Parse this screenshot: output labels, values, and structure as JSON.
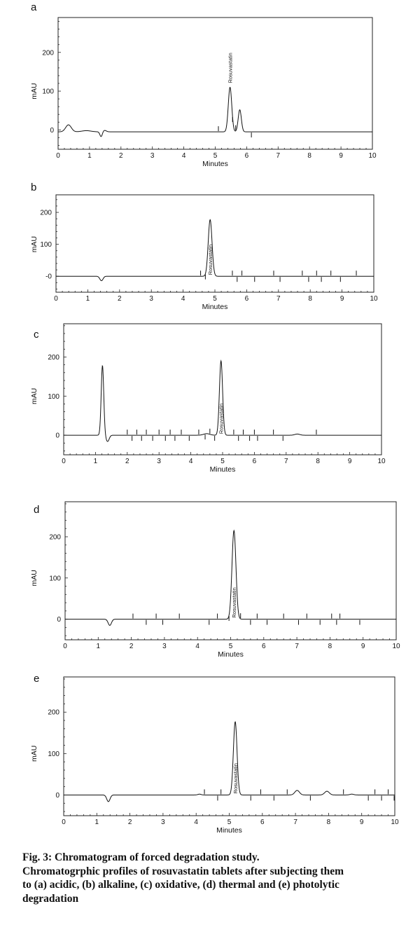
{
  "chart_data": [
    {
      "type": "line",
      "panel_label": "a",
      "xlabel": "Minutes",
      "ylabel": "mAU",
      "xlim": [
        0,
        10
      ],
      "ylim": [
        -50,
        290
      ],
      "x_ticks": [
        "0",
        "1",
        "2",
        "3",
        "4",
        "5",
        "6",
        "7",
        "8",
        "9",
        "10"
      ],
      "y_ticks": [
        {
          "value": 0,
          "label": "0"
        },
        {
          "value": 100,
          "label": "100"
        },
        {
          "value": 200,
          "label": "200"
        }
      ],
      "grid": false,
      "baseline": -5,
      "peaks": [
        {
          "t": 0.33,
          "h": 18,
          "w": 0.09
        },
        {
          "t": 0.9,
          "h": 3,
          "w": 0.15
        },
        {
          "t": 1.37,
          "h": -13,
          "w": 0.04
        },
        {
          "t": 1.47,
          "h": 4,
          "w": 0.06
        },
        {
          "t": 5.47,
          "h": 115,
          "w": 0.055
        },
        {
          "t": 5.78,
          "h": 57,
          "w": 0.05
        }
      ],
      "markers": [
        5.1,
        5.55,
        5.65,
        6.15
      ],
      "annotations": [
        {
          "t": 5.47,
          "text": "Rosuvastatin"
        }
      ]
    },
    {
      "type": "line",
      "panel_label": "b",
      "xlabel": "Minutes",
      "ylabel": "mAU",
      "xlim": [
        0,
        10
      ],
      "ylim": [
        -50,
        255
      ],
      "x_ticks": [
        "0",
        "1",
        "2",
        "3",
        "4",
        "5",
        "6",
        "7",
        "8",
        "9",
        "10"
      ],
      "y_ticks": [
        {
          "value": 0,
          "label": "-0"
        },
        {
          "value": 100,
          "label": "100"
        },
        {
          "value": 200,
          "label": "200"
        }
      ],
      "grid": false,
      "baseline": 0,
      "peaks": [
        {
          "t": 1.43,
          "h": -14,
          "w": 0.05
        },
        {
          "t": 4.85,
          "h": 177,
          "w": 0.06
        }
      ],
      "markers": [
        4.55,
        4.7,
        5.55,
        5.7,
        5.85,
        6.25,
        6.85,
        7.05,
        7.75,
        7.95,
        8.2,
        8.35,
        8.65,
        8.95,
        9.45
      ],
      "annotations": [
        {
          "t": 4.85,
          "text": "Rosuvastatin"
        }
      ]
    },
    {
      "type": "line",
      "panel_label": "c",
      "xlabel": "Minutes",
      "ylabel": "mAU",
      "xlim": [
        0,
        10
      ],
      "ylim": [
        -50,
        285
      ],
      "x_ticks": [
        "0",
        "1",
        "2",
        "3",
        "4",
        "5",
        "6",
        "7",
        "8",
        "9",
        "10"
      ],
      "y_ticks": [
        {
          "value": 0,
          "label": "0"
        },
        {
          "value": 100,
          "label": "100"
        },
        {
          "value": 200,
          "label": "200"
        }
      ],
      "grid": false,
      "baseline": 0,
      "peaks": [
        {
          "t": 1.22,
          "h": 178,
          "w": 0.04
        },
        {
          "t": 1.38,
          "h": -16,
          "w": 0.05
        },
        {
          "t": 4.5,
          "h": 4,
          "w": 0.1
        },
        {
          "t": 4.95,
          "h": 190,
          "w": 0.05
        },
        {
          "t": 7.35,
          "h": 3,
          "w": 0.08
        }
      ],
      "markers": [
        2.0,
        2.15,
        2.3,
        2.45,
        2.6,
        2.8,
        3.0,
        3.2,
        3.35,
        3.5,
        3.7,
        3.95,
        4.25,
        4.45,
        4.6,
        4.75,
        5.35,
        5.5,
        5.65,
        5.85,
        6.0,
        6.1,
        6.6,
        6.9,
        7.95
      ],
      "annotations": [
        {
          "t": 4.95,
          "text": "Rosuvastatin"
        }
      ]
    },
    {
      "type": "line",
      "panel_label": "d",
      "xlabel": "Minutes",
      "ylabel": "mAU",
      "xlim": [
        0,
        10
      ],
      "ylim": [
        -50,
        285
      ],
      "x_ticks": [
        "0",
        "1",
        "2",
        "3",
        "4",
        "5",
        "6",
        "7",
        "8",
        "9",
        "10"
      ],
      "y_ticks": [
        {
          "value": 0,
          "label": "0"
        },
        {
          "value": 100,
          "label": "100"
        },
        {
          "value": 200,
          "label": "200"
        }
      ],
      "grid": false,
      "baseline": 0,
      "peaks": [
        {
          "t": 1.35,
          "h": -15,
          "w": 0.05
        },
        {
          "t": 5.1,
          "h": 215,
          "w": 0.06
        }
      ],
      "markers": [
        2.05,
        2.45,
        2.75,
        2.95,
        3.45,
        4.35,
        4.6,
        4.95,
        5.3,
        5.6,
        5.8,
        6.1,
        6.6,
        7.05,
        7.3,
        7.7,
        8.05,
        8.2,
        8.3,
        8.9
      ],
      "annotations": [
        {
          "t": 5.1,
          "text": "Rosuvastatin"
        }
      ]
    },
    {
      "type": "line",
      "panel_label": "e",
      "xlabel": "Minutes",
      "ylabel": "mAU",
      "xlim": [
        0,
        10
      ],
      "ylim": [
        -50,
        285
      ],
      "x_ticks": [
        "0",
        "1",
        "2",
        "3",
        "4",
        "5",
        "6",
        "7",
        "8",
        "9",
        "10"
      ],
      "y_ticks": [
        {
          "value": 0,
          "label": "0"
        },
        {
          "value": 100,
          "label": "100"
        },
        {
          "value": 200,
          "label": "200"
        }
      ],
      "grid": false,
      "baseline": 0,
      "peaks": [
        {
          "t": 1.35,
          "h": -16,
          "w": 0.05
        },
        {
          "t": 4.1,
          "h": 2,
          "w": 0.05
        },
        {
          "t": 5.18,
          "h": 177,
          "w": 0.055
        },
        {
          "t": 7.05,
          "h": 11,
          "w": 0.07
        },
        {
          "t": 7.95,
          "h": 9,
          "w": 0.07
        },
        {
          "t": 8.7,
          "h": 2,
          "w": 0.06
        }
      ],
      "markers": [
        4.25,
        4.65,
        4.75,
        5.65,
        5.95,
        6.35,
        6.75,
        7.45,
        8.45,
        9.2,
        9.4,
        9.6,
        9.8,
        9.98
      ],
      "annotations": [
        {
          "t": 5.18,
          "text": "Rosuvastatin"
        }
      ]
    }
  ],
  "caption": {
    "title": "Fig. 3: Chromatogram of forced degradation study.",
    "lines": [
      "Chromatogrphic profiles of rosuvastatin tablets after subjecting them",
      "to (a) acidic, (b) alkaline, (c) oxidative, (d) thermal and (e) photolytic",
      "degradation"
    ]
  }
}
